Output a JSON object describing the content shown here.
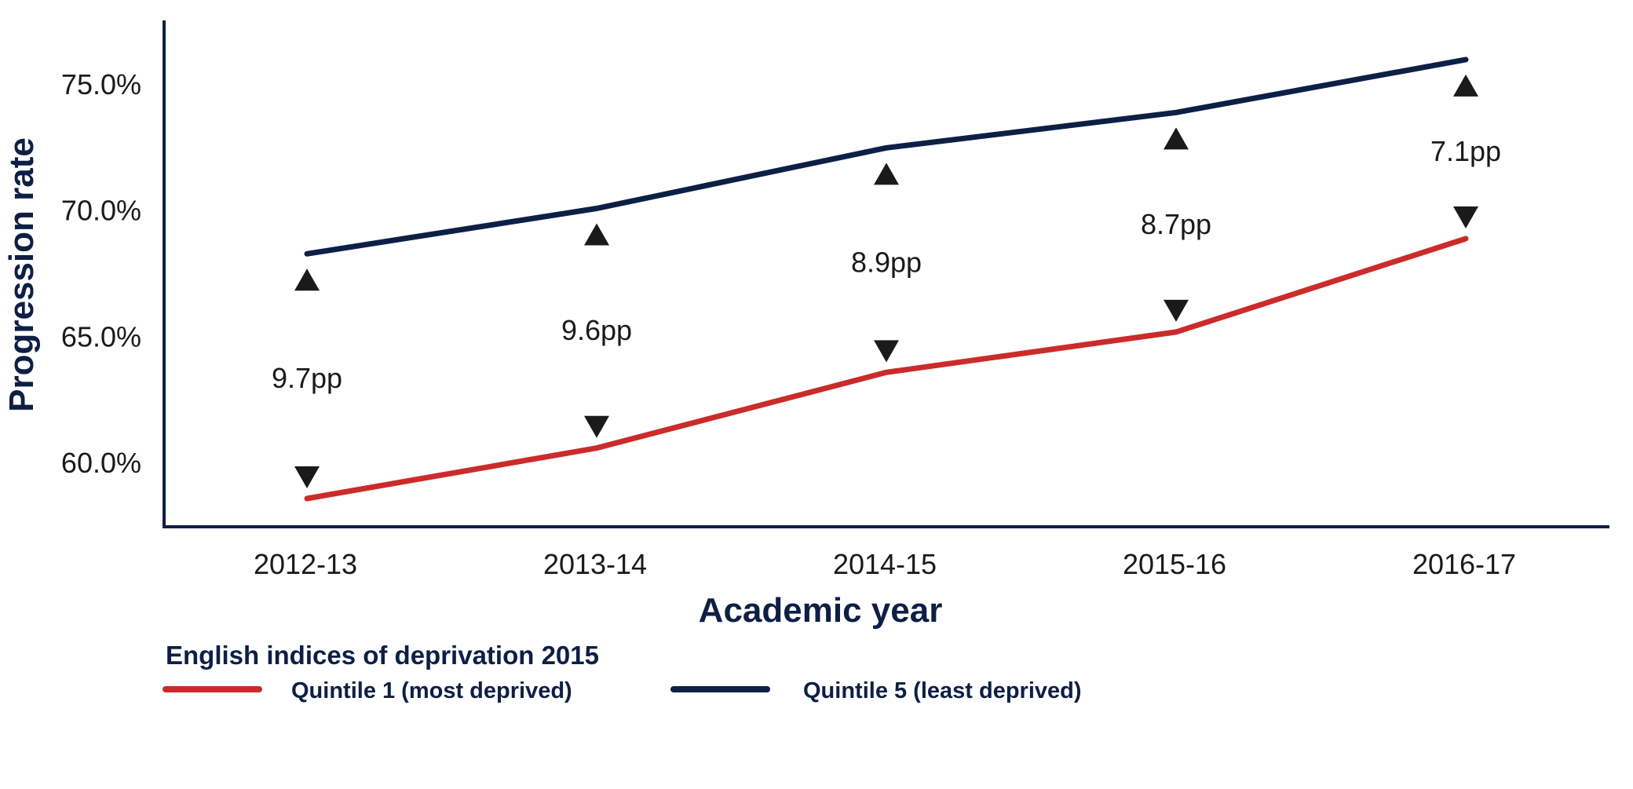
{
  "chart_data": {
    "type": "line",
    "xlabel": "Academic year",
    "ylabel": "Progression rate",
    "categories": [
      "2012-13",
      "2013-14",
      "2014-15",
      "2015-16",
      "2016-17"
    ],
    "y_ticks": [
      60.0,
      65.0,
      70.0,
      75.0
    ],
    "y_tick_labels": [
      "60.0%",
      "65.0%",
      "70.0%",
      "75.0%"
    ],
    "ylim": [
      57.5,
      77.5
    ],
    "grid": false,
    "series": [
      {
        "name": "Quintile 1 (most deprived)",
        "color": "#cc2b2b",
        "values": [
          58.6,
          60.6,
          63.6,
          65.2,
          68.9
        ]
      },
      {
        "name": "Quintile 5 (least deprived)",
        "color": "#0d1f45",
        "values": [
          68.3,
          70.1,
          72.5,
          73.9,
          76.0
        ]
      }
    ],
    "gap_labels": [
      "9.7pp",
      "9.6pp",
      "8.9pp",
      "8.7pp",
      "7.1pp"
    ],
    "legend": {
      "title": "English indices of deprivation 2015",
      "placement": "bottom-left"
    }
  }
}
